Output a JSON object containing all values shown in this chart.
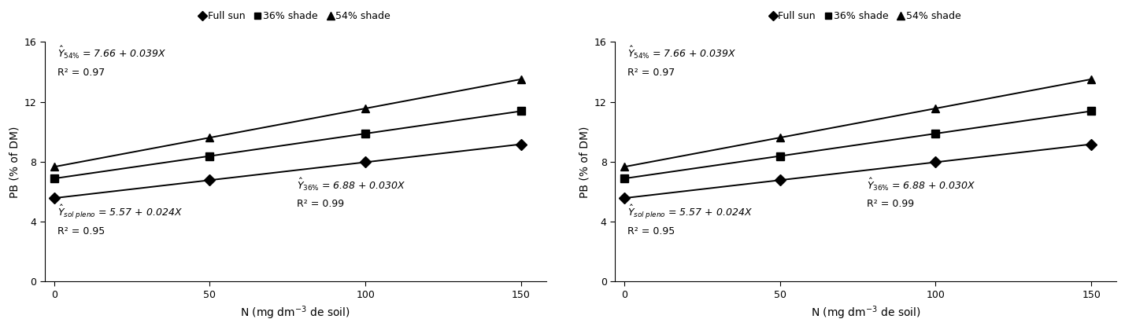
{
  "x_data": [
    0,
    50,
    100,
    150
  ],
  "full_sun_intercept": 5.57,
  "full_sun_slope": 0.024,
  "shade36_intercept": 6.88,
  "shade36_slope": 0.03,
  "shade54_intercept": 7.66,
  "shade54_slope": 0.039,
  "xlabel": "N (mg dm$^{-3}$ de soil)",
  "ylabel": "PB (% of DM)",
  "ylim": [
    0,
    16
  ],
  "yticks": [
    0,
    4,
    8,
    12,
    16
  ],
  "xticks": [
    0,
    50,
    100,
    150
  ],
  "xlim": [
    -3,
    158
  ],
  "legend_labels": [
    "Full sun",
    "36% shade",
    "54% shade"
  ],
  "line_color": "#000000",
  "marker_fullsun": "D",
  "marker_36": "s",
  "marker_54": "^",
  "marker_size": 7,
  "line_width": 1.4,
  "annot_font_size": 9,
  "tick_font_size": 9,
  "axis_label_font_size": 10,
  "legend_font_size": 9,
  "ann54_x": 1,
  "ann54_y1": 15.8,
  "ann54_y2": 14.3,
  "ann_solpleno_x": 1,
  "ann_solpleno_y1": 5.2,
  "ann_solpleno_y2": 3.7,
  "ann36_x": 78,
  "ann36_y1": 7.0,
  "ann36_y2": 5.5
}
